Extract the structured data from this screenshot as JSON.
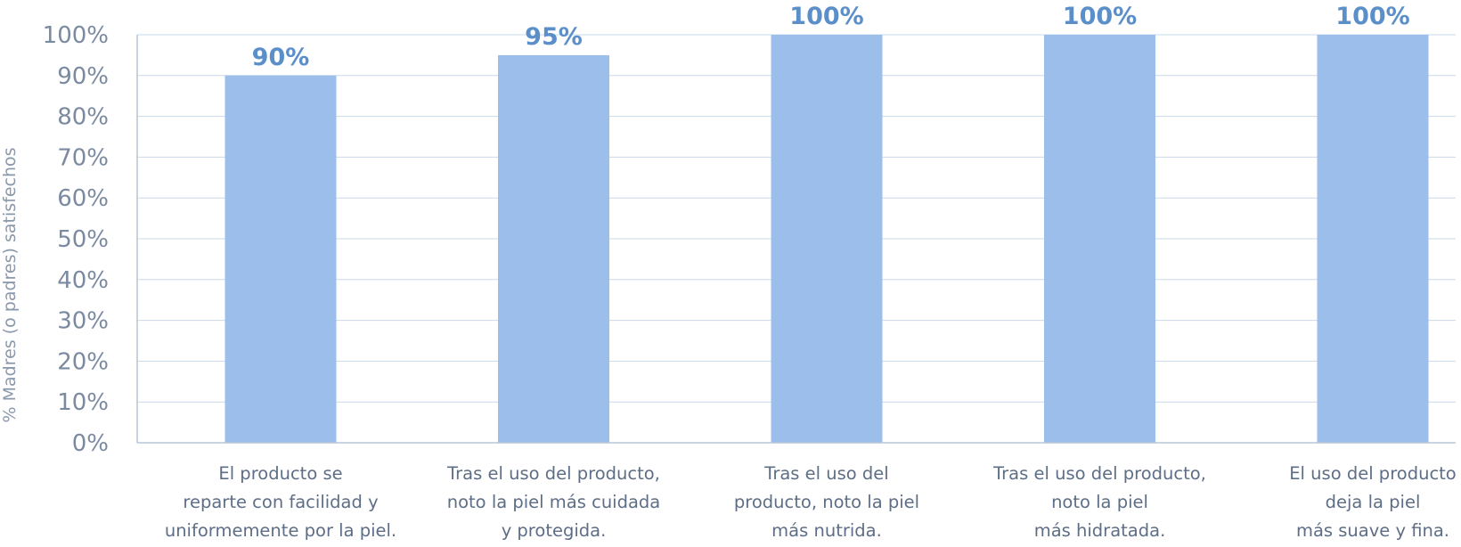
{
  "chart_data": {
    "type": "bar",
    "ylabel": "% Madres (o padres) satisfechos",
    "ylim": [
      0,
      100
    ],
    "yticks": [
      "0%",
      "10%",
      "20%",
      "30%",
      "40%",
      "50%",
      "60%",
      "70%",
      "80%",
      "90%",
      "100%"
    ],
    "categories": [
      [
        "El producto se",
        "reparte con facilidad y",
        "uniformemente por la piel."
      ],
      [
        "Tras el uso del producto,",
        "noto la piel más cuidada",
        "y protegida."
      ],
      [
        "Tras el uso del",
        "producto, noto la piel",
        "más nutrida."
      ],
      [
        "Tras el uso del producto,",
        "noto la piel",
        "más hidratada."
      ],
      [
        "El uso del producto",
        "deja la piel",
        "más suave y fina."
      ]
    ],
    "values": [
      90,
      95,
      100,
      100,
      100
    ],
    "data_labels": [
      "90%",
      "95%",
      "100%",
      "100%",
      "100%"
    ],
    "grid": true,
    "colors": {
      "bar": "#9bbfea",
      "data_label": "#5b8fc9",
      "grid": "#c9d8ea",
      "tick_text": "#7a8aa0"
    }
  }
}
